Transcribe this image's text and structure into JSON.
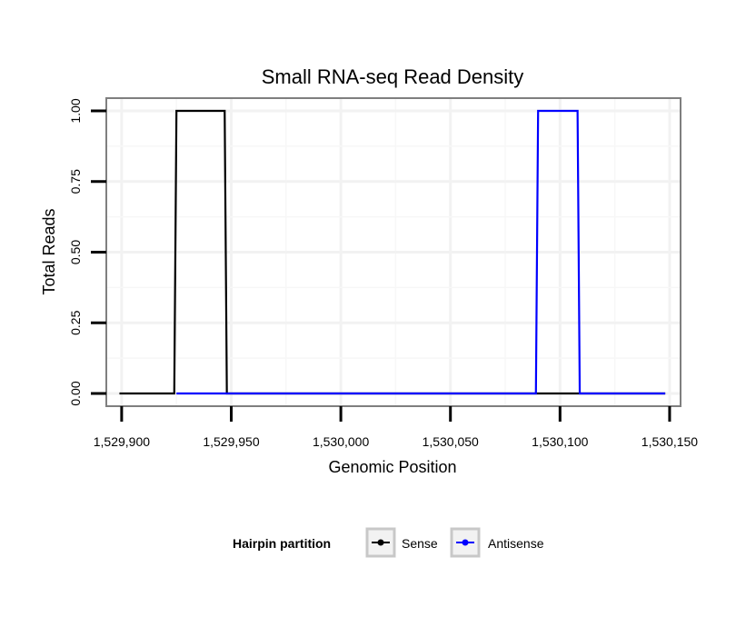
{
  "chart_data": {
    "type": "line",
    "title": "Small RNA-seq Read Density",
    "xlabel": "Genomic Position",
    "ylabel": "Total Reads",
    "xlim": [
      1529893,
      1530155
    ],
    "ylim": [
      -0.045,
      1.045
    ],
    "x_ticks": [
      1529900,
      1529950,
      1530000,
      1530050,
      1530100,
      1530150
    ],
    "x_tick_labels": [
      "1,529,900",
      "1,529,950",
      "1,530,000",
      "1,530,050",
      "1,530,100",
      "1,530,150"
    ],
    "y_ticks": [
      0,
      0.25,
      0.5,
      0.75,
      1.0
    ],
    "y_tick_labels": [
      "0.00",
      "0.25",
      "0.50",
      "0.75",
      "1.00"
    ],
    "grid": true,
    "legend": {
      "title": "Hairpin partition",
      "placement": "bottom"
    },
    "series": [
      {
        "name": "Sense",
        "color": "#000000",
        "x": [
          1529899,
          1529924,
          1529925,
          1529947,
          1529948,
          1530148
        ],
        "y": [
          0,
          0,
          1,
          1,
          0,
          0
        ]
      },
      {
        "name": "Antisense",
        "color": "#0000ff",
        "x": [
          1529925,
          1529947,
          1530089,
          1530090,
          1530108,
          1530109,
          1530148
        ],
        "y": [
          0,
          0,
          0,
          1,
          1,
          0,
          0
        ]
      }
    ]
  }
}
